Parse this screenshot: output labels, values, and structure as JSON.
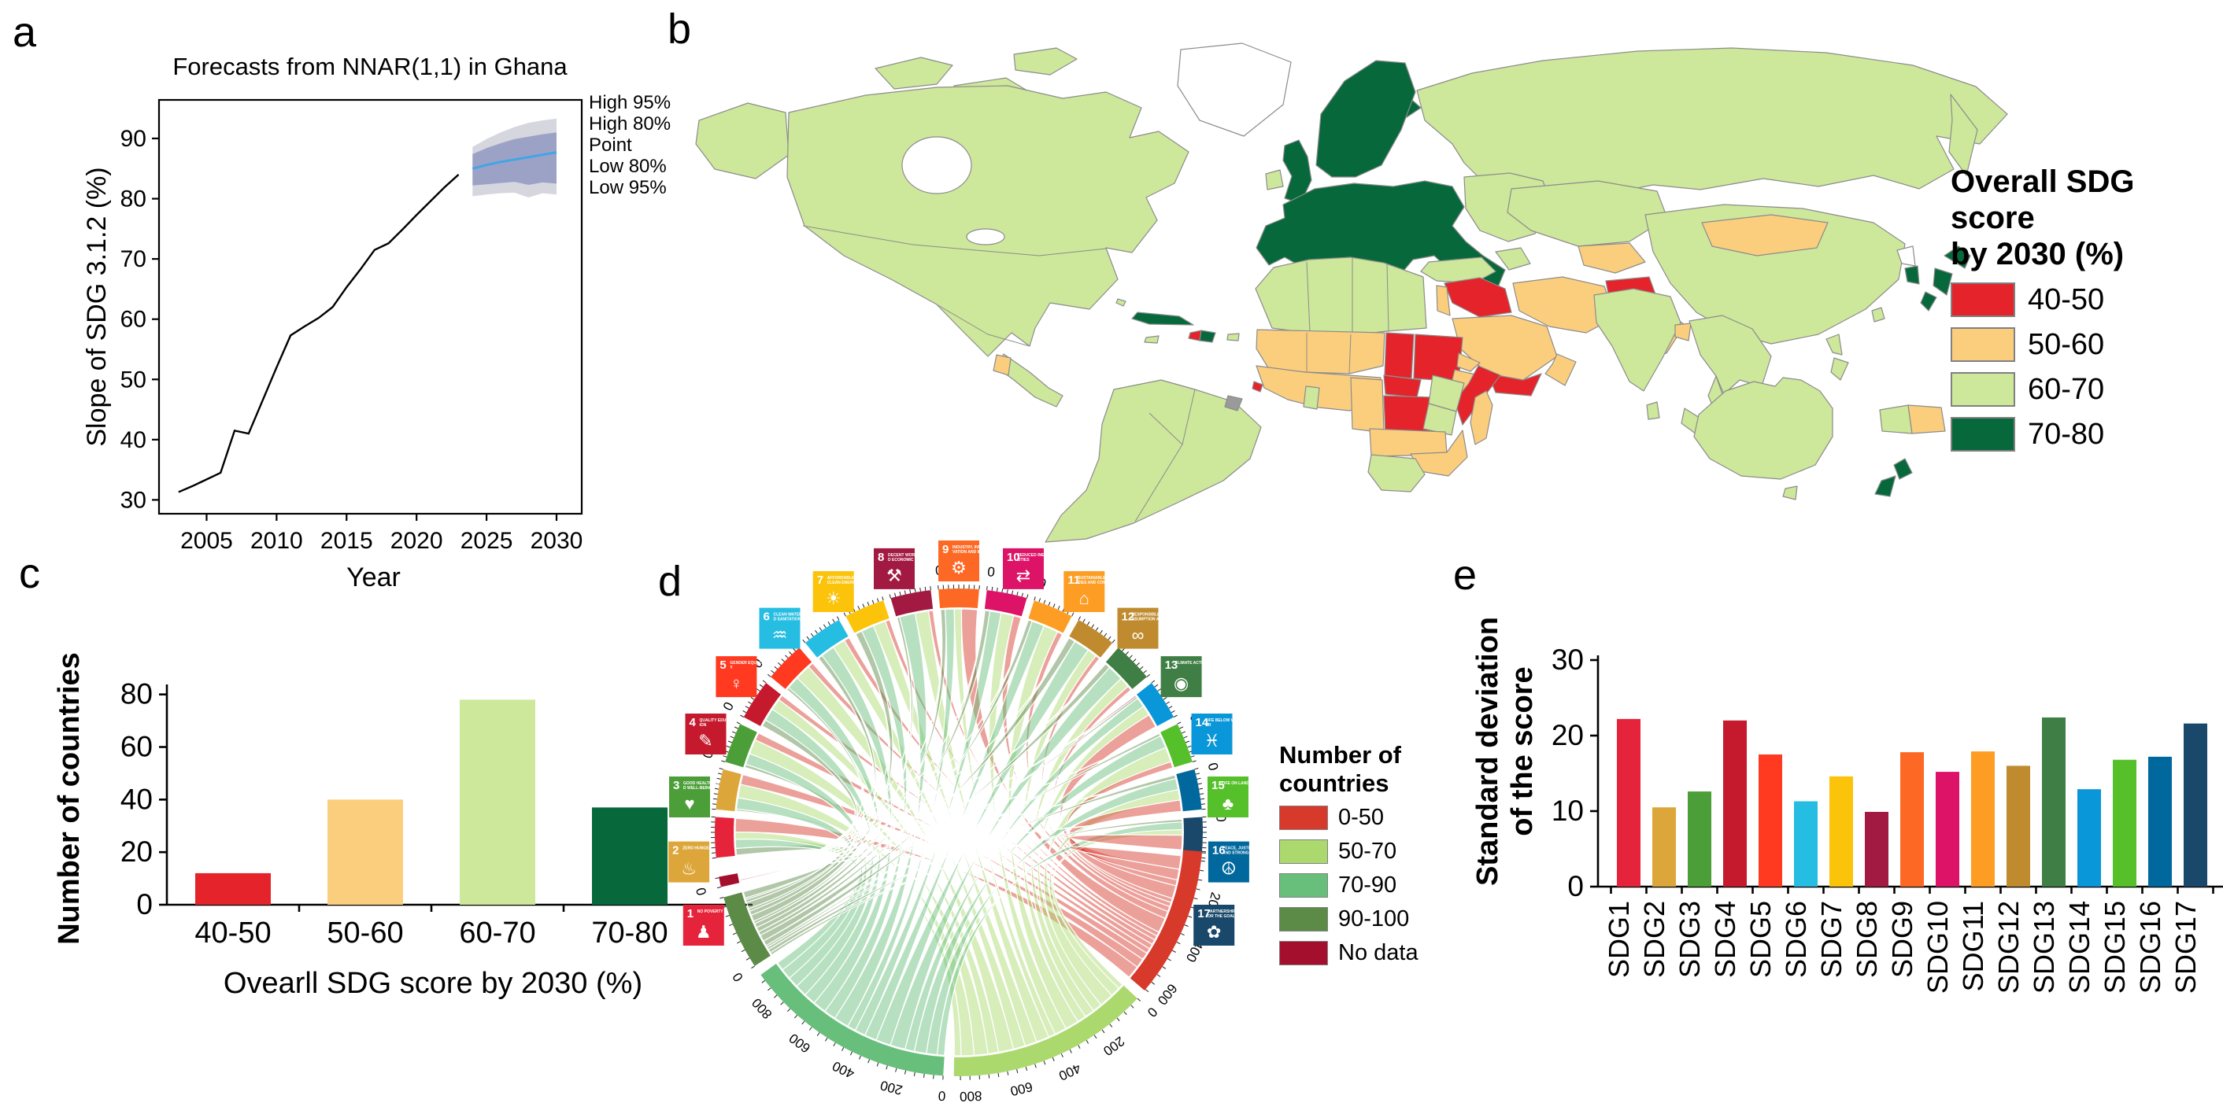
{
  "figure": {
    "panel_labels": {
      "a": "a",
      "b": "b",
      "c": "c",
      "d": "d",
      "e": "e"
    }
  },
  "panel_a": {
    "title": "Forecasts from NNAR(1,1) in Ghana",
    "xlabel": "Year",
    "ylabel": "Slope of SDG 3.1.2 (%)",
    "legend": [
      "High 95%",
      "High 80%",
      "Point",
      "Low 80%",
      "Low 95%"
    ]
  },
  "panel_b": {
    "legend_title_line1": "Overall SDG score",
    "legend_title_line2": "by 2030 (%)",
    "legend_items": [
      {
        "label": "40-50",
        "color": "#E4232B"
      },
      {
        "label": "50-60",
        "color": "#FBCE7E"
      },
      {
        "label": "60-70",
        "color": "#CDE79B"
      },
      {
        "label": "70-80",
        "color": "#07693B"
      }
    ]
  },
  "panel_c": {
    "ylabel": "Number of countries",
    "xlabel": "Ovearll SDG score by 2030 (%)"
  },
  "panel_d": {
    "legend_title_line1": "Number of",
    "legend_title_line2": "countries",
    "legend_items": [
      {
        "label": "0-50",
        "color": "#D7392B"
      },
      {
        "label": "50-70",
        "color": "#ABD96E"
      },
      {
        "label": "70-90",
        "color": "#67BF7B"
      },
      {
        "label": "90-100",
        "color": "#5C8A47"
      },
      {
        "label": "No data",
        "color": "#A50F2E"
      }
    ]
  },
  "panel_e": {
    "ylabel_line1": "Standard deviation",
    "ylabel_line2": "of the score"
  },
  "chart_data": [
    {
      "type": "line",
      "panel": "a",
      "title": "Forecasts from NNAR(1,1) in Ghana",
      "xlabel": "Year",
      "ylabel": "Slope of SDG 3.1.2 (%)",
      "x_ticks": [
        2005,
        2010,
        2015,
        2020,
        2025,
        2030
      ],
      "y_ticks": [
        30,
        40,
        50,
        60,
        70,
        80,
        90
      ],
      "xlim": [
        2001.6,
        2031.8
      ],
      "ylim": [
        27.7,
        96.4
      ],
      "history_years": [
        2003,
        2004,
        2005,
        2006,
        2007,
        2008,
        2009,
        2010,
        2011,
        2012,
        2013,
        2014,
        2015,
        2016,
        2017,
        2018,
        2019,
        2020,
        2021,
        2022,
        2023
      ],
      "history_values": [
        31.3,
        32.3,
        33.4,
        34.5,
        41.5,
        41.0,
        46.5,
        52.0,
        57.3,
        58.8,
        60.2,
        62.0,
        65.3,
        68.3,
        71.5,
        72.6,
        74.9,
        77.3,
        79.6,
        81.9,
        84.0
      ],
      "forecast_years": [
        2024,
        2025,
        2026,
        2027,
        2028,
        2029,
        2030
      ],
      "point": [
        85.0,
        85.6,
        86.1,
        86.5,
        86.9,
        87.3,
        87.7
      ],
      "lo80": [
        82.2,
        82.4,
        82.6,
        82.8,
        82.3,
        82.7,
        82.5
      ],
      "hi80": [
        87.4,
        88.4,
        89.2,
        89.9,
        90.3,
        90.7,
        91.0
      ],
      "lo95": [
        80.4,
        80.7,
        80.9,
        81.0,
        80.2,
        80.9,
        80.7
      ],
      "hi95": [
        88.6,
        89.9,
        91.0,
        91.9,
        92.6,
        93.0,
        93.3
      ],
      "colors": {
        "history": "#000000",
        "point": "#42A5E5",
        "band80": "#9BA2C6",
        "band95": "#D6D6DF"
      }
    },
    {
      "type": "choropleth",
      "panel": "b",
      "title": "Overall SDG score by 2030 (%)",
      "categories": [
        "40-50",
        "50-60",
        "60-70",
        "70-80"
      ],
      "category_colors": {
        "40-50": "#E4232B",
        "50-60": "#FBCE7E",
        "60-70": "#CDE79B",
        "70-80": "#07693B",
        "none": "#FFFFFF",
        "gray": "#9A9A9A"
      },
      "border_color": "#8C8C8C",
      "region_categories": {
        "arctic-islands": "60-70",
        "greenland": "none",
        "alaska": "60-70",
        "north-america": "60-70",
        "bahamas": "60-70",
        "central-america": "60-70",
        "guatemala": "50-60",
        "cuba": "70-80",
        "haiti": "40-50",
        "dominican-republic": "70-80",
        "jamaica": "60-70",
        "puerto-rico": "60-70",
        "south-america": "60-70",
        "french-guiana": "gray",
        "iceland": "70-80",
        "ireland": "60-70",
        "united-kingdom": "70-80",
        "scandinavia": "70-80",
        "europe": "70-80",
        "eastern-europe": "60-70",
        "russia": "60-70",
        "turkey": "60-70",
        "caucasus": "60-70",
        "kazakhstan": "60-70",
        "central-asia-south": "50-60",
        "syria-iraq": "40-50",
        "levant": "50-60",
        "saudi-arabia": "50-60",
        "yemen": "40-50",
        "oman": "50-60",
        "iran": "50-60",
        "afghanistan": "40-50",
        "pakistan": "50-60",
        "north-africa": "60-70",
        "sahel": "50-60",
        "west-africa": "50-60",
        "ghana": "60-70",
        "guinea-bissau": "40-50",
        "chad": "40-50",
        "sudan": "40-50",
        "eritrea": "50-60",
        "ethiopia": "50-60",
        "somalia": "40-50",
        "cameroon-gabon": "50-60",
        "central-african-republic": "40-50",
        "dr-congo": "40-50",
        "uganda-kenya": "60-70",
        "tanzania": "60-70",
        "angola-zambia": "50-60",
        "zimbabwe-mozambique": "50-60",
        "madagascar": "50-60",
        "southern-africa": "60-70",
        "india": "60-70",
        "sri-lanka": "60-70",
        "bangladesh": "50-60",
        "china": "60-70",
        "mongolia": "50-60",
        "southeast-asia": "60-70",
        "indonesia": "60-70",
        "philippines": "60-70",
        "west-new-guinea": "60-70",
        "papua-new-guinea": "50-60",
        "taiwan": "60-70",
        "japan": "70-80",
        "south-korea": "70-80",
        "north-korea": "none",
        "australia": "60-70",
        "tasmania": "60-70",
        "new-zealand": "70-80"
      }
    },
    {
      "type": "bar",
      "panel": "c",
      "categories": [
        "40-50",
        "50-60",
        "60-70",
        "70-80"
      ],
      "values": [
        12,
        40,
        78,
        37
      ],
      "colors": [
        "#E4232B",
        "#FBCE7E",
        "#CDE79B",
        "#07693B"
      ],
      "y_ticks": [
        0,
        20,
        40,
        60,
        80
      ],
      "ylim": [
        0,
        82
      ],
      "xlabel": "Ovearll SDG score by 2030 (%)",
      "ylabel": "Number of countries"
    },
    {
      "type": "chord",
      "panel": "d",
      "sdgs": [
        {
          "id": "SDG1",
          "name": "NO POVERTY",
          "color": "#E5243B",
          "glyph": "♟"
        },
        {
          "id": "SDG2",
          "name": "ZERO HUNGER",
          "color": "#DDA63A",
          "glyph": "♨"
        },
        {
          "id": "SDG3",
          "name": "GOOD HEALTH AND WELL-BEING",
          "color": "#4C9F38",
          "glyph": "♥"
        },
        {
          "id": "SDG4",
          "name": "QUALITY EDUCATION",
          "color": "#C5192D",
          "glyph": "✎"
        },
        {
          "id": "SDG5",
          "name": "GENDER EQUALITY",
          "color": "#FF3A21",
          "glyph": "♀"
        },
        {
          "id": "SDG6",
          "name": "CLEAN WATER AND SANITATION",
          "color": "#26BDE2",
          "glyph": "♒"
        },
        {
          "id": "SDG7",
          "name": "AFFORDABLE AND CLEAN ENERGY",
          "color": "#FCC30B",
          "glyph": "☀"
        },
        {
          "id": "SDG8",
          "name": "DECENT WORK AND ECONOMIC GROWTH",
          "color": "#A21942",
          "glyph": "⚒"
        },
        {
          "id": "SDG9",
          "name": "INDUSTRY, INNOVATION AND INFRASTRUCTURE",
          "color": "#FD6925",
          "glyph": "⚙"
        },
        {
          "id": "SDG10",
          "name": "REDUCED INEQUALITIES",
          "color": "#DD1367",
          "glyph": "⇄"
        },
        {
          "id": "SDG11",
          "name": "SUSTAINABLE CITIES AND COMMUNITIES",
          "color": "#FD9D24",
          "glyph": "⌂"
        },
        {
          "id": "SDG12",
          "name": "RESPONSIBLE CONSUMPTION AND PRODUCTION",
          "color": "#BF8B2E",
          "glyph": "∞"
        },
        {
          "id": "SDG13",
          "name": "CLIMATE ACTION",
          "color": "#3F7E44",
          "glyph": "◉"
        },
        {
          "id": "SDG14",
          "name": "LIFE BELOW WATER",
          "color": "#0A97D9",
          "glyph": "♓"
        },
        {
          "id": "SDG15",
          "name": "LIFE ON LAND",
          "color": "#56C02B",
          "glyph": "♣"
        },
        {
          "id": "SDG16",
          "name": "PEACE, JUSTICE AND STRONG INSTITUTIONS",
          "color": "#00689D",
          "glyph": "☮"
        },
        {
          "id": "SDG17",
          "name": "PARTNERSHIPS FOR THE GOALS",
          "color": "#19486A",
          "glyph": "✿"
        }
      ],
      "categories": [
        "No data",
        "90-100",
        "70-90",
        "50-70",
        "0-50"
      ],
      "category_colors": [
        "#A50F2E",
        "#5C8A47",
        "#67BF7B",
        "#ABD96E",
        "#D7392B"
      ],
      "matrix": [
        [
          2,
          30,
          40,
          32,
          60
        ],
        [
          2,
          8,
          50,
          60,
          44
        ],
        [
          2,
          14,
          50,
          64,
          34
        ],
        [
          4,
          30,
          56,
          50,
          24
        ],
        [
          2,
          12,
          56,
          70,
          24
        ],
        [
          2,
          20,
          62,
          56,
          24
        ],
        [
          2,
          30,
          56,
          56,
          20
        ],
        [
          2,
          12,
          70,
          60,
          20
        ],
        [
          2,
          20,
          40,
          32,
          70
        ],
        [
          2,
          22,
          50,
          56,
          34
        ],
        [
          2,
          18,
          56,
          64,
          24
        ],
        [
          2,
          30,
          70,
          42,
          20
        ],
        [
          4,
          24,
          70,
          46,
          20
        ],
        [
          6,
          10,
          44,
          44,
          60
        ],
        [
          2,
          12,
          56,
          66,
          28
        ],
        [
          2,
          16,
          50,
          46,
          50
        ],
        [
          4,
          12,
          34,
          24,
          90
        ]
      ],
      "axis_label_step": 200,
      "top_axis_zero_label": "0"
    },
    {
      "type": "bar",
      "panel": "e",
      "categories": [
        "SDG1",
        "SDG2",
        "SDG3",
        "SDG4",
        "SDG5",
        "SDG6",
        "SDG7",
        "SDG8",
        "SDG9",
        "SDG10",
        "SDG11",
        "SDG12",
        "SDG13",
        "SDG14",
        "SDG15",
        "SDG16",
        "SDG17"
      ],
      "values": [
        22.2,
        10.5,
        12.6,
        22.0,
        17.5,
        11.3,
        14.6,
        9.9,
        17.8,
        15.2,
        17.9,
        16.0,
        22.4,
        12.9,
        16.8,
        17.2,
        21.6
      ],
      "colors": [
        "#E5243B",
        "#DDA63A",
        "#4C9F38",
        "#C5192D",
        "#FF3A21",
        "#26BDE2",
        "#FCC30B",
        "#A21942",
        "#FD6925",
        "#DD1367",
        "#FD9D24",
        "#BF8B2E",
        "#3F7E44",
        "#0A97D9",
        "#56C02B",
        "#00689D",
        "#19486A"
      ],
      "y_ticks": [
        0,
        10,
        20,
        30
      ],
      "ylim": [
        0,
        30
      ],
      "ylabel": "Standard deviation of the score"
    }
  ]
}
